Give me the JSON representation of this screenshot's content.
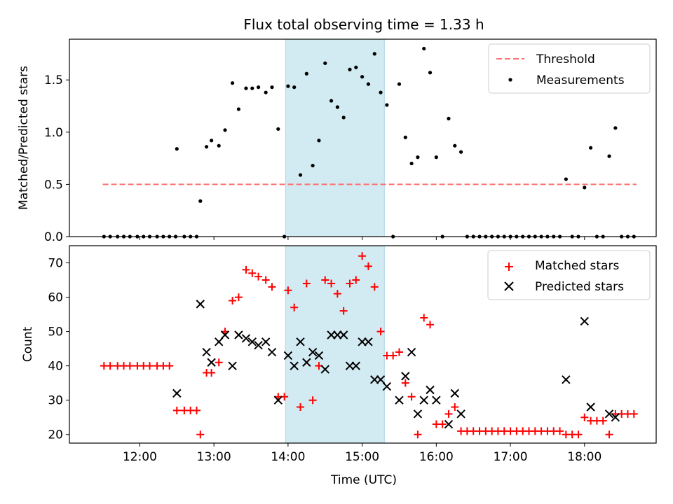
{
  "title": "Flux total observing time = 1.33 h",
  "shaded_region": {
    "start": "13:58",
    "end": "15:18",
    "color": "#add8e6"
  },
  "chart_data": [
    {
      "type": "scatter",
      "ylabel": "Matched/Predicted stars",
      "xlim": [
        "11:03",
        "18:58"
      ],
      "ylim": [
        0,
        1.89
      ],
      "yticks": [
        "0.0",
        "0.5",
        "1.0",
        "1.5"
      ],
      "legend_position": "upper right",
      "threshold": {
        "name": "Threshold",
        "value": 0.5,
        "x_range": [
          "11:30",
          "18:42"
        ],
        "color": "#ff7070",
        "style": "dashed"
      },
      "series": [
        {
          "name": "Measurements",
          "color": "#000000",
          "points": [
            [
              "11:31",
              0
            ],
            [
              "11:36",
              0
            ],
            [
              "11:42",
              0
            ],
            [
              "11:47",
              0
            ],
            [
              "11:52",
              0
            ],
            [
              "11:58",
              0
            ],
            [
              "12:03",
              0
            ],
            [
              "12:08",
              0
            ],
            [
              "12:14",
              0
            ],
            [
              "12:19",
              0
            ],
            [
              "12:24",
              0
            ],
            [
              "12:29",
              0
            ],
            [
              "12:30",
              0.84
            ],
            [
              "12:36",
              0
            ],
            [
              "12:41",
              0
            ],
            [
              "12:46",
              0
            ],
            [
              "12:49",
              0.34
            ],
            [
              "12:54",
              0.86
            ],
            [
              "12:58",
              0.92
            ],
            [
              "13:04",
              0.87
            ],
            [
              "13:09",
              1.02
            ],
            [
              "13:15",
              1.47
            ],
            [
              "13:20",
              1.22
            ],
            [
              "13:26",
              1.42
            ],
            [
              "13:31",
              1.42
            ],
            [
              "13:36",
              1.43
            ],
            [
              "13:42",
              1.38
            ],
            [
              "13:47",
              1.43
            ],
            [
              "13:52",
              1.03
            ],
            [
              "13:57",
              0
            ],
            [
              "14:00",
              1.44
            ],
            [
              "14:05",
              1.43
            ],
            [
              "14:10",
              0.59
            ],
            [
              "14:15",
              1.56
            ],
            [
              "14:20",
              0.68
            ],
            [
              "14:25",
              0.92
            ],
            [
              "14:30",
              1.66
            ],
            [
              "14:35",
              1.3
            ],
            [
              "14:40",
              1.24
            ],
            [
              "14:45",
              1.14
            ],
            [
              "14:50",
              1.6
            ],
            [
              "14:55",
              1.62
            ],
            [
              "15:00",
              1.53
            ],
            [
              "15:05",
              1.46
            ],
            [
              "15:10",
              1.75
            ],
            [
              "15:15",
              1.38
            ],
            [
              "15:20",
              1.26
            ],
            [
              "15:25",
              0
            ],
            [
              "15:30",
              1.46
            ],
            [
              "15:35",
              0.95
            ],
            [
              "15:40",
              0.7
            ],
            [
              "15:45",
              0.76
            ],
            [
              "15:50",
              1.8
            ],
            [
              "15:55",
              1.57
            ],
            [
              "16:00",
              0.76
            ],
            [
              "16:05",
              0
            ],
            [
              "16:10",
              1.13
            ],
            [
              "16:15",
              0.87
            ],
            [
              "16:20",
              0.81
            ],
            [
              "16:25",
              0
            ],
            [
              "16:30",
              0
            ],
            [
              "16:35",
              0
            ],
            [
              "16:40",
              0
            ],
            [
              "16:45",
              0
            ],
            [
              "16:50",
              0
            ],
            [
              "16:55",
              0
            ],
            [
              "17:00",
              0
            ],
            [
              "17:05",
              0
            ],
            [
              "17:10",
              0
            ],
            [
              "17:15",
              0
            ],
            [
              "17:20",
              0
            ],
            [
              "17:25",
              0
            ],
            [
              "17:30",
              0
            ],
            [
              "17:35",
              0
            ],
            [
              "17:40",
              0
            ],
            [
              "17:45",
              0.55
            ],
            [
              "17:50",
              0
            ],
            [
              "17:55",
              0
            ],
            [
              "18:00",
              0.47
            ],
            [
              "18:05",
              0.85
            ],
            [
              "18:10",
              0
            ],
            [
              "18:15",
              0
            ],
            [
              "18:20",
              0.77
            ],
            [
              "18:25",
              1.04
            ],
            [
              "18:30",
              0
            ],
            [
              "18:35",
              0
            ],
            [
              "18:40",
              0
            ]
          ]
        }
      ]
    },
    {
      "type": "scatter",
      "xlabel": "Time (UTC)",
      "ylabel": "Count",
      "xlim": [
        "11:03",
        "18:58"
      ],
      "ylim": [
        17.5,
        75
      ],
      "xticks": [
        "12:00",
        "13:00",
        "14:00",
        "15:00",
        "16:00",
        "17:00",
        "18:00"
      ],
      "yticks": [
        "20",
        "30",
        "40",
        "50",
        "60",
        "70"
      ],
      "legend_position": "upper right",
      "series": [
        {
          "name": "Matched stars",
          "marker": "plus",
          "color": "#ff0000",
          "points": [
            [
              "11:31",
              40
            ],
            [
              "11:36",
              40
            ],
            [
              "11:42",
              40
            ],
            [
              "11:47",
              40
            ],
            [
              "11:52",
              40
            ],
            [
              "11:58",
              40
            ],
            [
              "12:03",
              40
            ],
            [
              "12:08",
              40
            ],
            [
              "12:14",
              40
            ],
            [
              "12:19",
              40
            ],
            [
              "12:24",
              40
            ],
            [
              "12:30",
              27
            ],
            [
              "12:36",
              27
            ],
            [
              "12:41",
              27
            ],
            [
              "12:46",
              27
            ],
            [
              "12:49",
              20
            ],
            [
              "12:54",
              38
            ],
            [
              "12:58",
              38
            ],
            [
              "13:04",
              41
            ],
            [
              "13:09",
              50
            ],
            [
              "13:15",
              59
            ],
            [
              "13:20",
              60
            ],
            [
              "13:26",
              68
            ],
            [
              "13:31",
              67
            ],
            [
              "13:36",
              66
            ],
            [
              "13:42",
              65
            ],
            [
              "13:47",
              63
            ],
            [
              "13:52",
              31
            ],
            [
              "13:57",
              31
            ],
            [
              "14:00",
              62
            ],
            [
              "14:05",
              57
            ],
            [
              "14:10",
              28
            ],
            [
              "14:15",
              64
            ],
            [
              "14:20",
              30
            ],
            [
              "14:25",
              40
            ],
            [
              "14:30",
              65
            ],
            [
              "14:35",
              64
            ],
            [
              "14:40",
              61
            ],
            [
              "14:45",
              56
            ],
            [
              "14:50",
              64
            ],
            [
              "14:55",
              65
            ],
            [
              "15:00",
              72
            ],
            [
              "15:05",
              69
            ],
            [
              "15:10",
              63
            ],
            [
              "15:15",
              50
            ],
            [
              "15:20",
              43
            ],
            [
              "15:25",
              43
            ],
            [
              "15:30",
              44
            ],
            [
              "15:35",
              35
            ],
            [
              "15:40",
              31
            ],
            [
              "15:45",
              20
            ],
            [
              "15:50",
              54
            ],
            [
              "15:55",
              52
            ],
            [
              "16:00",
              23
            ],
            [
              "16:05",
              23
            ],
            [
              "16:10",
              26
            ],
            [
              "16:15",
              28
            ],
            [
              "16:20",
              21
            ],
            [
              "16:25",
              21
            ],
            [
              "16:30",
              21
            ],
            [
              "16:35",
              21
            ],
            [
              "16:40",
              21
            ],
            [
              "16:45",
              21
            ],
            [
              "16:50",
              21
            ],
            [
              "16:55",
              21
            ],
            [
              "17:00",
              21
            ],
            [
              "17:05",
              21
            ],
            [
              "17:10",
              21
            ],
            [
              "17:15",
              21
            ],
            [
              "17:20",
              21
            ],
            [
              "17:25",
              21
            ],
            [
              "17:30",
              21
            ],
            [
              "17:35",
              21
            ],
            [
              "17:40",
              21
            ],
            [
              "17:45",
              20
            ],
            [
              "17:50",
              20
            ],
            [
              "17:55",
              20
            ],
            [
              "18:00",
              25
            ],
            [
              "18:05",
              24
            ],
            [
              "18:10",
              24
            ],
            [
              "18:15",
              24
            ],
            [
              "18:20",
              20
            ],
            [
              "18:25",
              26
            ],
            [
              "18:30",
              26
            ],
            [
              "18:35",
              26
            ],
            [
              "18:40",
              26
            ]
          ]
        },
        {
          "name": "Predicted stars",
          "marker": "x",
          "color": "#000000",
          "points": [
            [
              "12:30",
              32
            ],
            [
              "12:49",
              58
            ],
            [
              "12:54",
              44
            ],
            [
              "12:58",
              41
            ],
            [
              "13:04",
              47
            ],
            [
              "13:09",
              49
            ],
            [
              "13:15",
              40
            ],
            [
              "13:20",
              49
            ],
            [
              "13:26",
              48
            ],
            [
              "13:31",
              47
            ],
            [
              "13:36",
              46
            ],
            [
              "13:42",
              47
            ],
            [
              "13:47",
              44
            ],
            [
              "13:52",
              30
            ],
            [
              "14:00",
              43
            ],
            [
              "14:05",
              40
            ],
            [
              "14:10",
              47
            ],
            [
              "14:15",
              41
            ],
            [
              "14:20",
              44
            ],
            [
              "14:25",
              43
            ],
            [
              "14:30",
              39
            ],
            [
              "14:35",
              49
            ],
            [
              "14:40",
              49
            ],
            [
              "14:45",
              49
            ],
            [
              "14:50",
              40
            ],
            [
              "14:55",
              40
            ],
            [
              "15:00",
              47
            ],
            [
              "15:05",
              47
            ],
            [
              "15:10",
              36
            ],
            [
              "15:15",
              36
            ],
            [
              "15:20",
              34
            ],
            [
              "15:30",
              30
            ],
            [
              "15:35",
              37
            ],
            [
              "15:40",
              44
            ],
            [
              "15:45",
              26
            ],
            [
              "15:50",
              30
            ],
            [
              "15:55",
              33
            ],
            [
              "16:00",
              30
            ],
            [
              "16:10",
              23
            ],
            [
              "16:15",
              32
            ],
            [
              "16:20",
              26
            ],
            [
              "17:45",
              36
            ],
            [
              "18:00",
              53
            ],
            [
              "18:05",
              28
            ],
            [
              "18:20",
              26
            ],
            [
              "18:25",
              25
            ]
          ]
        }
      ]
    }
  ]
}
